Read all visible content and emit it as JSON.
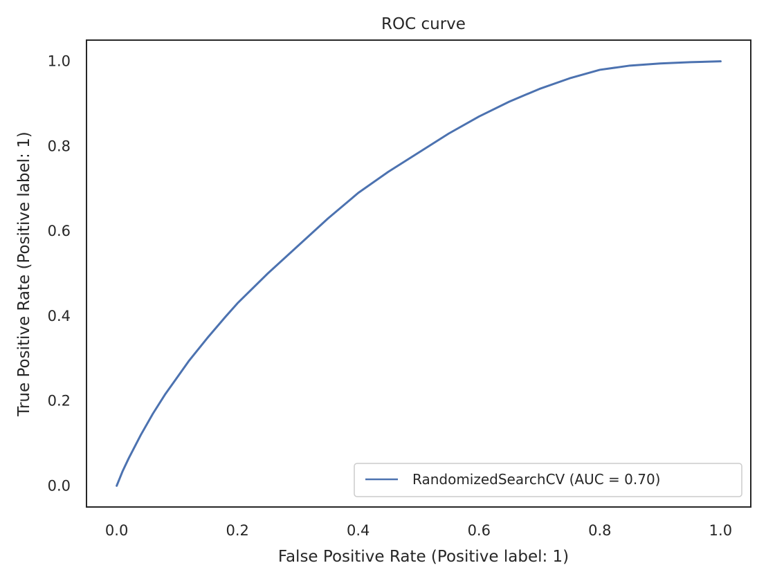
{
  "chart_data": {
    "type": "line",
    "title": "ROC curve",
    "xlabel": "False Positive Rate (Positive label: 1)",
    "ylabel": "True Positive Rate (Positive label: 1)",
    "xlim": [
      -0.05,
      1.05
    ],
    "ylim": [
      -0.05,
      1.05
    ],
    "xticks": [
      0.0,
      0.2,
      0.4,
      0.6,
      0.8,
      1.0
    ],
    "yticks": [
      0.0,
      0.2,
      0.4,
      0.6,
      0.8,
      1.0
    ],
    "tick_labels": [
      "0.0",
      "0.2",
      "0.4",
      "0.6",
      "0.8",
      "1.0"
    ],
    "grid": false,
    "legend_position": "bottom-right",
    "series": [
      {
        "name": "RandomizedSearchCV (AUC = 0.70)",
        "color": "#4c72b0",
        "x": [
          0.0,
          0.01,
          0.02,
          0.04,
          0.06,
          0.08,
          0.1,
          0.12,
          0.15,
          0.18,
          0.2,
          0.25,
          0.3,
          0.35,
          0.4,
          0.45,
          0.5,
          0.55,
          0.6,
          0.65,
          0.7,
          0.75,
          0.8,
          0.85,
          0.9,
          0.95,
          1.0
        ],
        "y": [
          0.0,
          0.035,
          0.065,
          0.12,
          0.17,
          0.215,
          0.255,
          0.295,
          0.348,
          0.398,
          0.43,
          0.5,
          0.565,
          0.63,
          0.69,
          0.74,
          0.785,
          0.83,
          0.87,
          0.905,
          0.935,
          0.96,
          0.98,
          0.99,
          0.995,
          0.998,
          1.0
        ]
      }
    ]
  }
}
